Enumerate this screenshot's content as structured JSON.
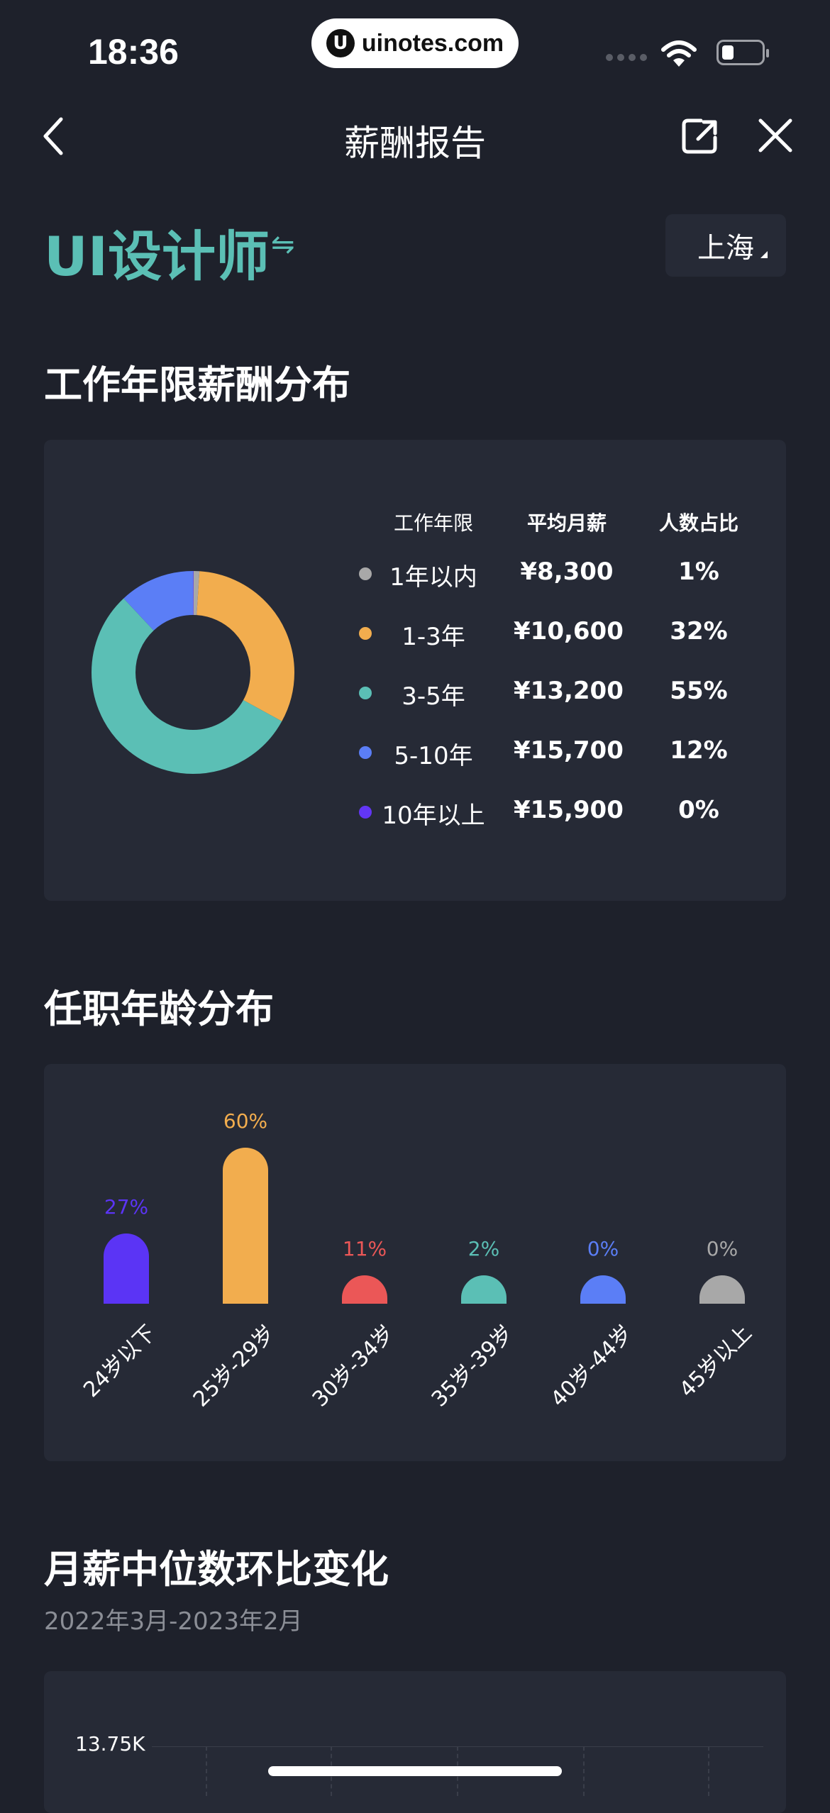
{
  "status_bar": {
    "time": "18:36",
    "url": "uinotes.com",
    "logo": "U"
  },
  "nav": {
    "title": "薪酬报告"
  },
  "job": {
    "title": "UI设计师",
    "swap_symbol": "⇋",
    "city": "上海"
  },
  "experience_section": {
    "title": "工作年限薪酬分布",
    "headers": [
      "工作年限",
      "平均月薪",
      "人数占比"
    ],
    "rows": [
      {
        "label": "1年以内",
        "salary": "¥8,300",
        "share": "1%",
        "color": "#a8a8a8"
      },
      {
        "label": "1-3年",
        "salary": "¥10,600",
        "share": "32%",
        "color": "#f2ad4e"
      },
      {
        "label": "3-5年",
        "salary": "¥13,200",
        "share": "55%",
        "color": "#5bbfb5"
      },
      {
        "label": "5-10年",
        "salary": "¥15,700",
        "share": "12%",
        "color": "#5b7ef6"
      },
      {
        "label": "10年以上",
        "salary": "¥15,900",
        "share": "0%",
        "color": "#6236f5"
      }
    ]
  },
  "age_section": {
    "title": "任职年龄分布"
  },
  "trend_section": {
    "title": "月薪中位数环比变化",
    "period": "2022年3月-2023年2月",
    "y_top_label": "13.75K"
  },
  "chart_data": [
    {
      "type": "pie",
      "categories": [
        "1年以内",
        "1-3年",
        "3-5年",
        "5-10年",
        "10年以上"
      ],
      "values": [
        1,
        32,
        55,
        12,
        0
      ],
      "colors": [
        "#a8a8a8",
        "#f2ad4e",
        "#5bbfb5",
        "#5b7ef6",
        "#6236f5"
      ]
    },
    {
      "type": "bar",
      "categories": [
        "24岁以下",
        "25岁-29岁",
        "30岁-34岁",
        "35岁-39岁",
        "40岁-44岁",
        "45岁以上"
      ],
      "values": [
        27,
        60,
        11,
        2,
        0,
        0
      ],
      "labels": [
        "27%",
        "60%",
        "11%",
        "2%",
        "0%",
        "0%"
      ],
      "colors": [
        "#5b34f5",
        "#f2ad4e",
        "#eb5757",
        "#5bbfb5",
        "#5b7ef6",
        "#a8a8a8"
      ]
    }
  ]
}
